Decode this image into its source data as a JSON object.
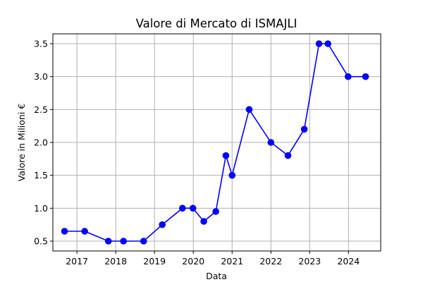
{
  "chart_data": {
    "type": "line",
    "title": "Valore di Mercato di ISMAJLI",
    "xlabel": "Data",
    "ylabel": "Valore in Milioni €",
    "xlim": [
      2016.38,
      2024.83
    ],
    "ylim": [
      0.35,
      3.65
    ],
    "x_ticks": [
      {
        "value": 2017,
        "label": "2017"
      },
      {
        "value": 2018,
        "label": "2018"
      },
      {
        "value": 2019,
        "label": "2019"
      },
      {
        "value": 2020,
        "label": "2020"
      },
      {
        "value": 2021,
        "label": "2021"
      },
      {
        "value": 2022,
        "label": "2022"
      },
      {
        "value": 2023,
        "label": "2023"
      },
      {
        "value": 2024,
        "label": "2024"
      }
    ],
    "y_ticks": [
      {
        "value": 0.5,
        "label": "0.5"
      },
      {
        "value": 1.0,
        "label": "1.0"
      },
      {
        "value": 1.5,
        "label": "1.5"
      },
      {
        "value": 2.0,
        "label": "2.0"
      },
      {
        "value": 2.5,
        "label": "2.5"
      },
      {
        "value": 3.0,
        "label": "3.0"
      },
      {
        "value": 3.5,
        "label": "3.5"
      }
    ],
    "grid": true,
    "series": [
      {
        "name": "Valore di Mercato",
        "color": "#0000ff",
        "x": [
          2016.68,
          2017.2,
          2017.81,
          2018.2,
          2018.72,
          2019.2,
          2019.72,
          2019.99,
          2020.27,
          2020.58,
          2020.84,
          2021.0,
          2021.44,
          2022.0,
          2022.44,
          2022.86,
          2023.24,
          2023.47,
          2023.99,
          2024.44
        ],
        "values": [
          0.65,
          0.65,
          0.5,
          0.5,
          0.5,
          0.75,
          1.0,
          1.0,
          0.8,
          0.95,
          1.8,
          1.5,
          2.5,
          2.0,
          1.8,
          2.2,
          3.5,
          3.5,
          3.0,
          3.0
        ]
      }
    ]
  }
}
